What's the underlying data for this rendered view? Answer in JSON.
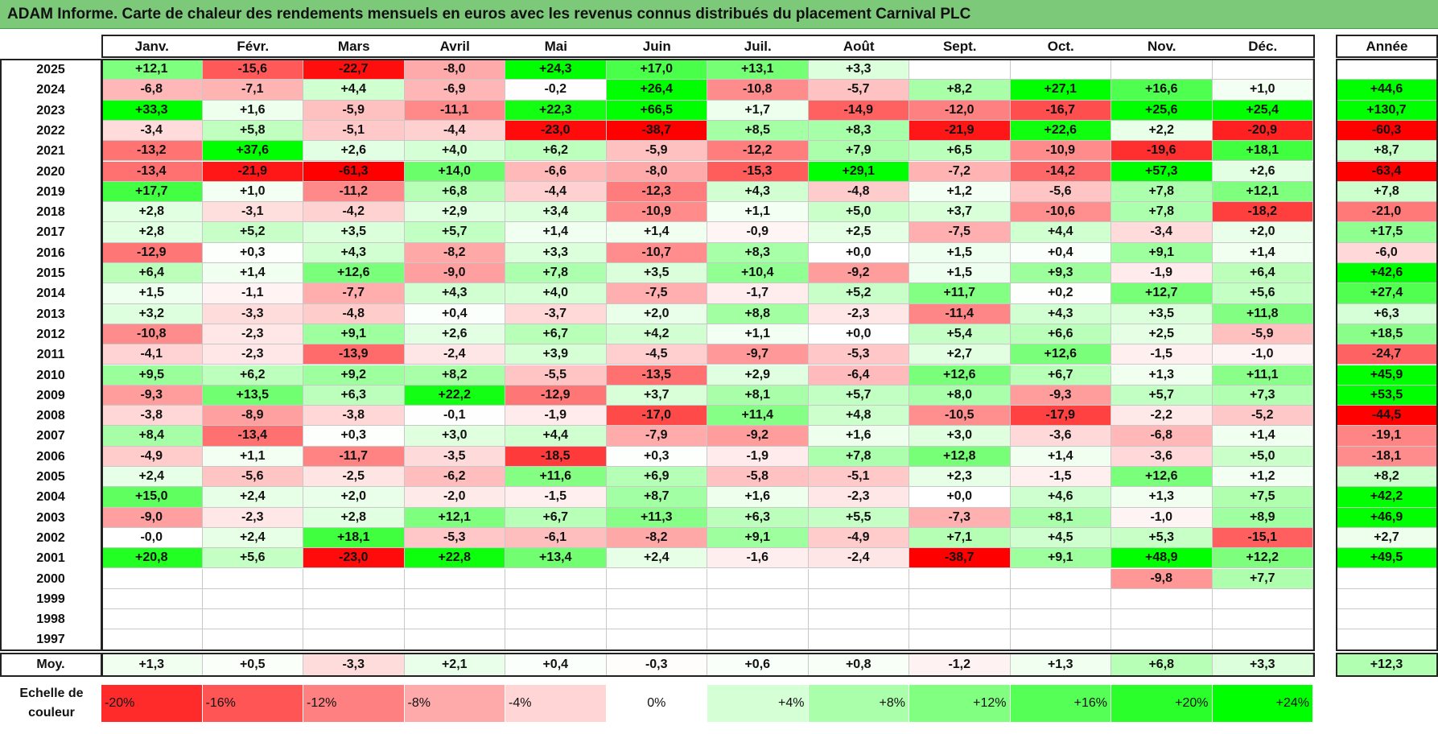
{
  "title": "ADAM Informe. Carte de chaleur des rendements mensuels en euros avec les revenus connus distribués du placement Carnival PLC",
  "colors": {
    "title_bg": "#7dc97a",
    "min_red": "#ff0000",
    "max_green": "#00ff00",
    "neutral": "#ffffff"
  },
  "chart_data": {
    "type": "heatmap",
    "title": "ADAM Informe. Carte de chaleur des rendements mensuels en euros avec les revenus connus distribués du placement Carnival PLC",
    "columns": [
      "Janv.",
      "Févr.",
      "Mars",
      "Avril",
      "Mai",
      "Juin",
      "Juil.",
      "Août",
      "Sept.",
      "Oct.",
      "Nov.",
      "Déc."
    ],
    "annual_header": "Année",
    "rows": [
      {
        "year": "2025",
        "values": [
          "+12,1",
          "-15,6",
          "-22,7",
          "-8,0",
          "+24,3",
          "+17,0",
          "+13,1",
          "+3,3",
          "",
          "",
          "",
          ""
        ],
        "annual": ""
      },
      {
        "year": "2024",
        "values": [
          "-6,8",
          "-7,1",
          "+4,4",
          "-6,9",
          "-0,2",
          "+26,4",
          "-10,8",
          "-5,7",
          "+8,2",
          "+27,1",
          "+16,6",
          "+1,0"
        ],
        "annual": "+44,6"
      },
      {
        "year": "2023",
        "values": [
          "+33,3",
          "+1,6",
          "-5,9",
          "-11,1",
          "+22,3",
          "+66,5",
          "+1,7",
          "-14,9",
          "-12,0",
          "-16,7",
          "+25,6",
          "+25,4"
        ],
        "annual": "+130,7"
      },
      {
        "year": "2022",
        "values": [
          "-3,4",
          "+5,8",
          "-5,1",
          "-4,4",
          "-23,0",
          "-38,7",
          "+8,5",
          "+8,3",
          "-21,9",
          "+22,6",
          "+2,2",
          "-20,9"
        ],
        "annual": "-60,3"
      },
      {
        "year": "2021",
        "values": [
          "-13,2",
          "+37,6",
          "+2,6",
          "+4,0",
          "+6,2",
          "-5,9",
          "-12,2",
          "+7,9",
          "+6,5",
          "-10,9",
          "-19,6",
          "+18,1"
        ],
        "annual": "+8,7"
      },
      {
        "year": "2020",
        "values": [
          "-13,4",
          "-21,9",
          "-61,3",
          "+14,0",
          "-6,6",
          "-8,0",
          "-15,3",
          "+29,1",
          "-7,2",
          "-14,2",
          "+57,3",
          "+2,6"
        ],
        "annual": "-63,4"
      },
      {
        "year": "2019",
        "values": [
          "+17,7",
          "+1,0",
          "-11,2",
          "+6,8",
          "-4,4",
          "-12,3",
          "+4,3",
          "-4,8",
          "+1,2",
          "-5,6",
          "+7,8",
          "+12,1"
        ],
        "annual": "+7,8"
      },
      {
        "year": "2018",
        "values": [
          "+2,8",
          "-3,1",
          "-4,2",
          "+2,9",
          "+3,4",
          "-10,9",
          "+1,1",
          "+5,0",
          "+3,7",
          "-10,6",
          "+7,8",
          "-18,2"
        ],
        "annual": "-21,0"
      },
      {
        "year": "2017",
        "values": [
          "+2,8",
          "+5,2",
          "+3,5",
          "+5,7",
          "+1,4",
          "+1,4",
          "-0,9",
          "+2,5",
          "-7,5",
          "+4,4",
          "-3,4",
          "+2,0"
        ],
        "annual": "+17,5"
      },
      {
        "year": "2016",
        "values": [
          "-12,9",
          "+0,3",
          "+4,3",
          "-8,2",
          "+3,3",
          "-10,7",
          "+8,3",
          "+0,0",
          "+1,5",
          "+0,4",
          "+9,1",
          "+1,4"
        ],
        "annual": "-6,0"
      },
      {
        "year": "2015",
        "values": [
          "+6,4",
          "+1,4",
          "+12,6",
          "-9,0",
          "+7,8",
          "+3,5",
          "+10,4",
          "-9,2",
          "+1,5",
          "+9,3",
          "-1,9",
          "+6,4"
        ],
        "annual": "+42,6"
      },
      {
        "year": "2014",
        "values": [
          "+1,5",
          "-1,1",
          "-7,7",
          "+4,3",
          "+4,0",
          "-7,5",
          "-1,7",
          "+5,2",
          "+11,7",
          "+0,2",
          "+12,7",
          "+5,6"
        ],
        "annual": "+27,4"
      },
      {
        "year": "2013",
        "values": [
          "+3,2",
          "-3,3",
          "-4,8",
          "+0,4",
          "-3,7",
          "+2,0",
          "+8,8",
          "-2,3",
          "-11,4",
          "+4,3",
          "+3,5",
          "+11,8"
        ],
        "annual": "+6,3"
      },
      {
        "year": "2012",
        "values": [
          "-10,8",
          "-2,3",
          "+9,1",
          "+2,6",
          "+6,7",
          "+4,2",
          "+1,1",
          "+0,0",
          "+5,4",
          "+6,6",
          "+2,5",
          "-5,9"
        ],
        "annual": "+18,5"
      },
      {
        "year": "2011",
        "values": [
          "-4,1",
          "-2,3",
          "-13,9",
          "-2,4",
          "+3,9",
          "-4,5",
          "-9,7",
          "-5,3",
          "+2,7",
          "+12,6",
          "-1,5",
          "-1,0"
        ],
        "annual": "-24,7"
      },
      {
        "year": "2010",
        "values": [
          "+9,5",
          "+6,2",
          "+9,2",
          "+8,2",
          "-5,5",
          "-13,5",
          "+2,9",
          "-6,4",
          "+12,6",
          "+6,7",
          "+1,3",
          "+11,1"
        ],
        "annual": "+45,9"
      },
      {
        "year": "2009",
        "values": [
          "-9,3",
          "+13,5",
          "+6,3",
          "+22,2",
          "-12,9",
          "+3,7",
          "+8,1",
          "+5,7",
          "+8,0",
          "-9,3",
          "+5,7",
          "+7,3"
        ],
        "annual": "+53,5"
      },
      {
        "year": "2008",
        "values": [
          "-3,8",
          "-8,9",
          "-3,8",
          "-0,1",
          "-1,9",
          "-17,0",
          "+11,4",
          "+4,8",
          "-10,5",
          "-17,9",
          "-2,2",
          "-5,2"
        ],
        "annual": "-44,5"
      },
      {
        "year": "2007",
        "values": [
          "+8,4",
          "-13,4",
          "+0,3",
          "+3,0",
          "+4,4",
          "-7,9",
          "-9,2",
          "+1,6",
          "+3,0",
          "-3,6",
          "-6,8",
          "+1,4"
        ],
        "annual": "-19,1"
      },
      {
        "year": "2006",
        "values": [
          "-4,9",
          "+1,1",
          "-11,7",
          "-3,5",
          "-18,5",
          "+0,3",
          "-1,9",
          "+7,8",
          "+12,8",
          "+1,4",
          "-3,6",
          "+5,0"
        ],
        "annual": "-18,1"
      },
      {
        "year": "2005",
        "values": [
          "+2,4",
          "-5,6",
          "-2,5",
          "-6,2",
          "+11,6",
          "+6,9",
          "-5,8",
          "-5,1",
          "+2,3",
          "-1,5",
          "+12,6",
          "+1,2"
        ],
        "annual": "+8,2"
      },
      {
        "year": "2004",
        "values": [
          "+15,0",
          "+2,4",
          "+2,0",
          "-2,0",
          "-1,5",
          "+8,7",
          "+1,6",
          "-2,3",
          "+0,0",
          "+4,6",
          "+1,3",
          "+7,5"
        ],
        "annual": "+42,2"
      },
      {
        "year": "2003",
        "values": [
          "-9,0",
          "-2,3",
          "+2,8",
          "+12,1",
          "+6,7",
          "+11,3",
          "+6,3",
          "+5,5",
          "-7,3",
          "+8,1",
          "-1,0",
          "+8,9"
        ],
        "annual": "+46,9"
      },
      {
        "year": "2002",
        "values": [
          "-0,0",
          "+2,4",
          "+18,1",
          "-5,3",
          "-6,1",
          "-8,2",
          "+9,1",
          "-4,9",
          "+7,1",
          "+4,5",
          "+5,3",
          "-15,1"
        ],
        "annual": "+2,7"
      },
      {
        "year": "2001",
        "values": [
          "+20,8",
          "+5,6",
          "-23,0",
          "+22,8",
          "+13,4",
          "+2,4",
          "-1,6",
          "-2,4",
          "-38,7",
          "+9,1",
          "+48,9",
          "+12,2"
        ],
        "annual": "+49,5"
      },
      {
        "year": "2000",
        "values": [
          "",
          "",
          "",
          "",
          "",
          "",
          "",
          "",
          "",
          "",
          "-9,8",
          "+7,7"
        ],
        "annual": ""
      },
      {
        "year": "1999",
        "values": [
          "",
          "",
          "",
          "",
          "",
          "",
          "",
          "",
          "",
          "",
          "",
          ""
        ],
        "annual": ""
      },
      {
        "year": "1998",
        "values": [
          "",
          "",
          "",
          "",
          "",
          "",
          "",
          "",
          "",
          "",
          "",
          ""
        ],
        "annual": ""
      },
      {
        "year": "1997",
        "values": [
          "",
          "",
          "",
          "",
          "",
          "",
          "",
          "",
          "",
          "",
          "",
          ""
        ],
        "annual": ""
      }
    ],
    "average": {
      "label": "Moy.",
      "values": [
        "+1,3",
        "+0,5",
        "-3,3",
        "+2,1",
        "+0,4",
        "-0,3",
        "+0,6",
        "+0,8",
        "-1,2",
        "+1,3",
        "+6,8",
        "+3,3"
      ],
      "annual": "+12,3"
    },
    "scale": {
      "label_line1": "Echelle de",
      "label_line2": "couleur",
      "steps": [
        "-20%",
        "-16%",
        "-12%",
        "-8%",
        "-4%",
        "0%",
        "+4%",
        "+8%",
        "+12%",
        "+16%",
        "+20%",
        "+24%"
      ]
    }
  }
}
